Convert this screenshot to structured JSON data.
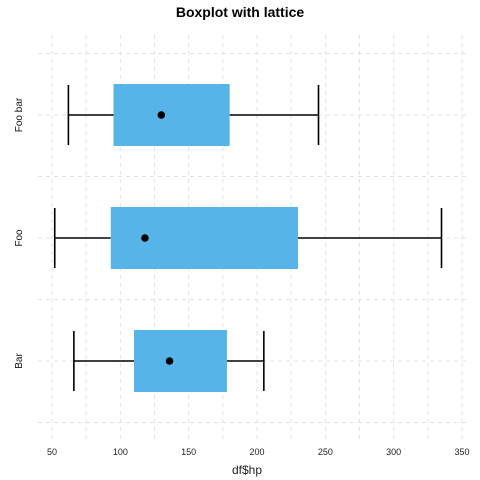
{
  "chart_data": {
    "type": "box",
    "title": "Boxplot with lattice",
    "xlabel": "df$hp",
    "ylabel": "",
    "xlim": [
      40,
      355
    ],
    "xticks": [
      50,
      100,
      150,
      200,
      250,
      300,
      350
    ],
    "grid": true,
    "box_color": "#56B4E9",
    "categories": [
      "Foo bar",
      "Foo",
      "Bar"
    ],
    "boxes": [
      {
        "category": "Foo bar",
        "whisker_low": 62,
        "q1": 95,
        "median": 130,
        "q3": 180,
        "whisker_high": 245
      },
      {
        "category": "Foo",
        "whisker_low": 52,
        "q1": 93,
        "median": 118,
        "q3": 230,
        "whisker_high": 335
      },
      {
        "category": "Bar",
        "whisker_low": 66,
        "q1": 110,
        "median": 136,
        "q3": 178,
        "whisker_high": 205
      }
    ]
  }
}
